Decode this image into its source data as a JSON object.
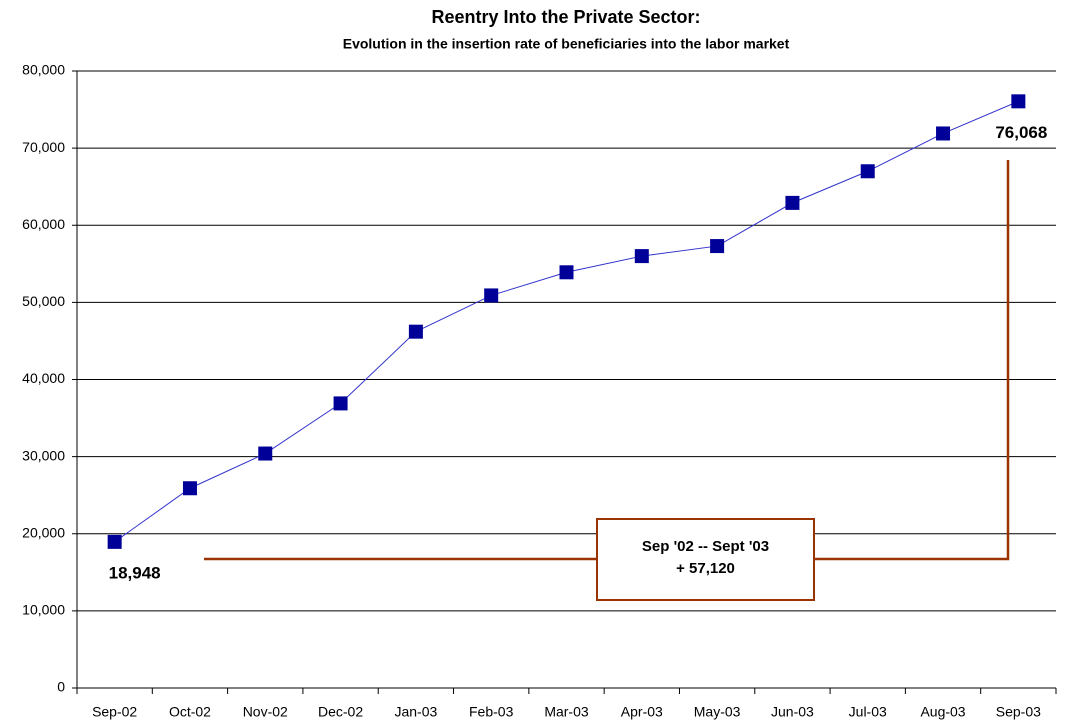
{
  "chart_data": {
    "type": "line",
    "title": "Reentry Into the Private Sector:",
    "subtitle": "Evolution in the insertion rate of beneficiaries into the labor market",
    "categories": [
      "Sep-02",
      "Oct-02",
      "Nov-02",
      "Dec-02",
      "Jan-03",
      "Feb-03",
      "Mar-03",
      "Apr-03",
      "May-03",
      "Jun-03",
      "Jul-03",
      "Aug-03",
      "Sep-03"
    ],
    "series": [
      {
        "name": "Beneficiaries",
        "color": "#000099",
        "line_color": "#3333cc",
        "values": [
          18948,
          25900,
          30400,
          36900,
          46200,
          50900,
          53900,
          56000,
          57300,
          62900,
          67000,
          71900,
          76068
        ],
        "value_labels": [
          "18,948",
          null,
          null,
          null,
          null,
          null,
          null,
          null,
          null,
          null,
          null,
          null,
          "76,068"
        ]
      }
    ],
    "ylim": [
      0,
      80000
    ],
    "yticks": [
      0,
      {
        "value": 10000,
        "label": "10,000"
      },
      {
        "value": 20000,
        "label": "20,000"
      },
      {
        "value": 30000,
        "label": "30,000"
      },
      {
        "value": 40000,
        "label": "40,000"
      },
      {
        "value": 50000,
        "label": "50,000"
      },
      {
        "value": 60000,
        "label": "60,000"
      },
      {
        "value": 70000,
        "label": "70,000"
      },
      {
        "value": 80000,
        "label": "80,000"
      }
    ],
    "grid": true,
    "annotation": {
      "lines": [
        "Sep '02 -- Sept '03",
        "+ 57,120"
      ],
      "color": "#993300"
    }
  }
}
